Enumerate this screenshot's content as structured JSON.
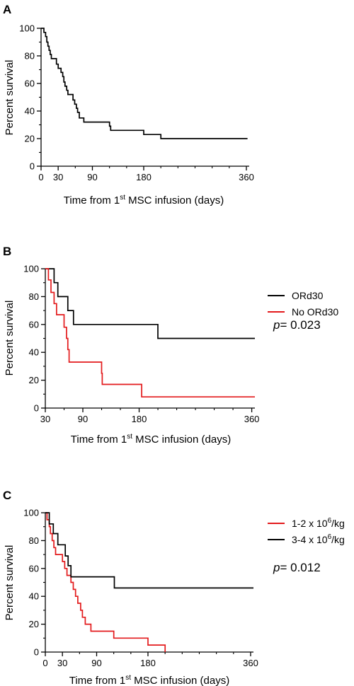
{
  "chart_data": [
    {
      "type": "line",
      "panel_label": "A",
      "xlabel_prefix": "Time from 1",
      "xlabel_sup": "st",
      "xlabel_suffix": " MSC infusion (days)",
      "ylabel": "Percent survival",
      "xlim": [
        0,
        365
      ],
      "ylim": [
        0,
        100
      ],
      "xticks": [
        0,
        30,
        90,
        180,
        360
      ],
      "xtick_labels": [
        "0",
        "30",
        "90",
        "180",
        "360"
      ],
      "yticks": [
        0,
        20,
        40,
        60,
        80,
        100
      ],
      "ytick_labels": [
        "0",
        "20",
        "40",
        "60",
        "80",
        "100"
      ],
      "grid": false,
      "series": [
        {
          "color": "#000000",
          "steps": [
            [
              0,
              100
            ],
            [
              5,
              97
            ],
            [
              8,
              94
            ],
            [
              10,
              90
            ],
            [
              12,
              87
            ],
            [
              14,
              84
            ],
            [
              16,
              81
            ],
            [
              18,
              78
            ],
            [
              27,
              74
            ],
            [
              30,
              71
            ],
            [
              35,
              68
            ],
            [
              38,
              65
            ],
            [
              40,
              61
            ],
            [
              42,
              58
            ],
            [
              45,
              55
            ],
            [
              47,
              52
            ],
            [
              56,
              48
            ],
            [
              59,
              45
            ],
            [
              62,
              42
            ],
            [
              64,
              39
            ],
            [
              67,
              35
            ],
            [
              75,
              32
            ],
            [
              120,
              29
            ],
            [
              122,
              26
            ],
            [
              180,
              23
            ],
            [
              210,
              20
            ],
            [
              362,
              20
            ]
          ]
        }
      ]
    },
    {
      "type": "line",
      "panel_label": "B",
      "xlabel_prefix": "Time from 1",
      "xlabel_sup": "st",
      "xlabel_suffix": " MSC infusion (days)",
      "ylabel": "Percent survival",
      "xlim": [
        30,
        365
      ],
      "ylim": [
        0,
        100
      ],
      "xticks": [
        30,
        90,
        180,
        360
      ],
      "xtick_labels": [
        "30",
        "90",
        "180",
        "360"
      ],
      "yticks": [
        0,
        20,
        40,
        60,
        80,
        100
      ],
      "ytick_labels": [
        "0",
        "20",
        "40",
        "60",
        "80",
        "100"
      ],
      "grid": false,
      "legend_position": "right",
      "annotation_italic": "p",
      "annotation_rest": "= 0.023",
      "series": [
        {
          "name": "ORd30",
          "color": "#000000",
          "steps": [
            [
              30,
              100
            ],
            [
              44,
              100
            ],
            [
              44,
              90
            ],
            [
              50,
              80
            ],
            [
              66,
              80
            ],
            [
              66,
              70
            ],
            [
              75,
              70
            ],
            [
              75,
              60
            ],
            [
              210,
              60
            ],
            [
              210,
              50
            ],
            [
              365,
              50
            ]
          ]
        },
        {
          "name": "No ORd30",
          "color": "#e31a1c",
          "steps": [
            [
              30,
              100
            ],
            [
              35,
              92
            ],
            [
              39,
              83
            ],
            [
              44,
              75
            ],
            [
              48,
              67
            ],
            [
              58,
              67
            ],
            [
              60,
              58
            ],
            [
              64,
              50
            ],
            [
              66,
              42
            ],
            [
              68,
              33
            ],
            [
              118,
              33
            ],
            [
              120,
              25
            ],
            [
              121,
              17
            ],
            [
              183,
              17
            ],
            [
              184,
              8
            ],
            [
              365,
              8
            ]
          ]
        }
      ]
    },
    {
      "type": "line",
      "panel_label": "C",
      "xlabel_prefix": "Time from 1",
      "xlabel_sup": "st",
      "xlabel_suffix": " MSC infusion (days)",
      "ylabel": "Percent survival",
      "xlim": [
        0,
        365
      ],
      "ylim": [
        0,
        100
      ],
      "xticks": [
        0,
        30,
        90,
        180,
        360
      ],
      "xtick_labels": [
        "0",
        "30",
        "90",
        "180",
        "360"
      ],
      "yticks": [
        0,
        20,
        40,
        60,
        80,
        100
      ],
      "ytick_labels": [
        "0",
        "20",
        "40",
        "60",
        "80",
        "100"
      ],
      "grid": false,
      "legend_position": "right",
      "annotation_italic": "p",
      "annotation_rest": "= 0.012",
      "series": [
        {
          "name_prefix": "1-2 x 10",
          "name_sup": "6",
          "name_suffix": "/kg",
          "color": "#e31a1c",
          "steps": [
            [
              0,
              100
            ],
            [
              3,
              95
            ],
            [
              7,
              90
            ],
            [
              9,
              85
            ],
            [
              12,
              80
            ],
            [
              15,
              75
            ],
            [
              18,
              70
            ],
            [
              30,
              65
            ],
            [
              34,
              60
            ],
            [
              38,
              55
            ],
            [
              45,
              50
            ],
            [
              49,
              45
            ],
            [
              53,
              40
            ],
            [
              57,
              35
            ],
            [
              62,
              30
            ],
            [
              65,
              25
            ],
            [
              70,
              20
            ],
            [
              80,
              15
            ],
            [
              120,
              10
            ],
            [
              180,
              5
            ],
            [
              210,
              0
            ]
          ]
        },
        {
          "name_prefix": "3-4 x 10",
          "name_sup": "6",
          "name_suffix": "/kg",
          "color": "#000000",
          "steps": [
            [
              0,
              100
            ],
            [
              7,
              92
            ],
            [
              14,
              85
            ],
            [
              22,
              77
            ],
            [
              35,
              69
            ],
            [
              40,
              62
            ],
            [
              45,
              54
            ],
            [
              120,
              54
            ],
            [
              121,
              46
            ],
            [
              365,
              46
            ]
          ]
        }
      ]
    }
  ]
}
